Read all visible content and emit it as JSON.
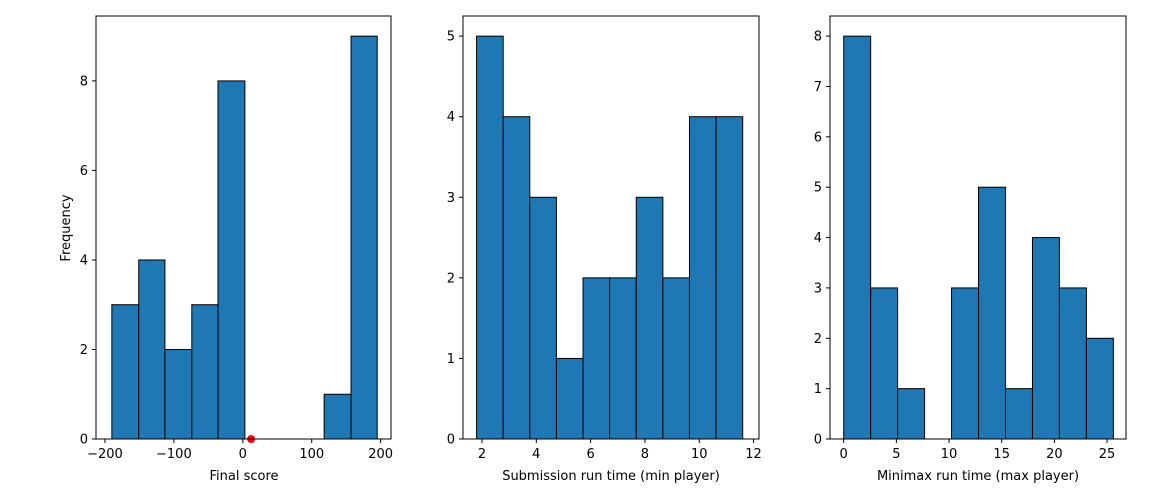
{
  "colors": {
    "bar_fill": "#1f77b4",
    "bar_edge": "#000000",
    "marker": "#ff0000"
  },
  "chart_data": [
    {
      "type": "bar",
      "title": "",
      "xlabel": "Final score",
      "ylabel": "Frequency",
      "xlim": [
        -213,
        215
      ],
      "ylim": [
        0,
        9.45
      ],
      "xticks": [
        -200,
        -100,
        0,
        100,
        200
      ],
      "yticks": [
        0,
        2,
        4,
        6,
        8
      ],
      "bins": [
        {
          "x0": -190,
          "x1": -151,
          "value": 3
        },
        {
          "x0": -151,
          "x1": -113,
          "value": 4
        },
        {
          "x0": -113,
          "x1": -74,
          "value": 2
        },
        {
          "x0": -74,
          "x1": -36,
          "value": 3
        },
        {
          "x0": -36,
          "x1": 3,
          "value": 8
        },
        {
          "x0": 3,
          "x1": 41,
          "value": 0
        },
        {
          "x0": 41,
          "x1": 80,
          "value": 0
        },
        {
          "x0": 80,
          "x1": 118,
          "value": 0
        },
        {
          "x0": 118,
          "x1": 157,
          "value": 1
        },
        {
          "x0": 157,
          "x1": 195,
          "value": 9
        }
      ],
      "markers": [
        {
          "x": 12,
          "y": 0
        }
      ]
    },
    {
      "type": "bar",
      "title": "",
      "xlabel": "Submission run time (min player)",
      "ylabel": "",
      "xlim": [
        1.3,
        12.2
      ],
      "ylim": [
        0,
        5.25
      ],
      "xticks": [
        2,
        4,
        6,
        8,
        10,
        12
      ],
      "yticks": [
        0,
        1,
        2,
        3,
        4,
        5
      ],
      "bins": [
        {
          "x0": 1.8,
          "x1": 2.78,
          "value": 5
        },
        {
          "x0": 2.78,
          "x1": 3.76,
          "value": 4
        },
        {
          "x0": 3.76,
          "x1": 4.74,
          "value": 3
        },
        {
          "x0": 4.74,
          "x1": 5.72,
          "value": 1
        },
        {
          "x0": 5.72,
          "x1": 6.7,
          "value": 2
        },
        {
          "x0": 6.7,
          "x1": 7.68,
          "value": 2
        },
        {
          "x0": 7.68,
          "x1": 8.66,
          "value": 3
        },
        {
          "x0": 8.66,
          "x1": 9.64,
          "value": 2
        },
        {
          "x0": 9.64,
          "x1": 10.62,
          "value": 4
        },
        {
          "x0": 10.62,
          "x1": 11.6,
          "value": 4
        }
      ],
      "markers": []
    },
    {
      "type": "bar",
      "title": "",
      "xlabel": "Minimax run time (max player)",
      "ylabel": "",
      "xlim": [
        -1.3,
        26.8
      ],
      "ylim": [
        0,
        8.4
      ],
      "xticks": [
        0,
        5,
        10,
        15,
        20,
        25
      ],
      "yticks": [
        0,
        1,
        2,
        3,
        4,
        5,
        6,
        7,
        8
      ],
      "bins": [
        {
          "x0": 0,
          "x1": 2.56,
          "value": 8
        },
        {
          "x0": 2.56,
          "x1": 5.12,
          "value": 3
        },
        {
          "x0": 5.12,
          "x1": 7.68,
          "value": 1
        },
        {
          "x0": 7.68,
          "x1": 10.24,
          "value": 0
        },
        {
          "x0": 10.24,
          "x1": 12.8,
          "value": 3
        },
        {
          "x0": 12.8,
          "x1": 15.36,
          "value": 5
        },
        {
          "x0": 15.36,
          "x1": 17.92,
          "value": 1
        },
        {
          "x0": 17.92,
          "x1": 20.48,
          "value": 4
        },
        {
          "x0": 20.48,
          "x1": 23.04,
          "value": 3
        },
        {
          "x0": 23.04,
          "x1": 25.6,
          "value": 2
        }
      ],
      "markers": []
    }
  ]
}
